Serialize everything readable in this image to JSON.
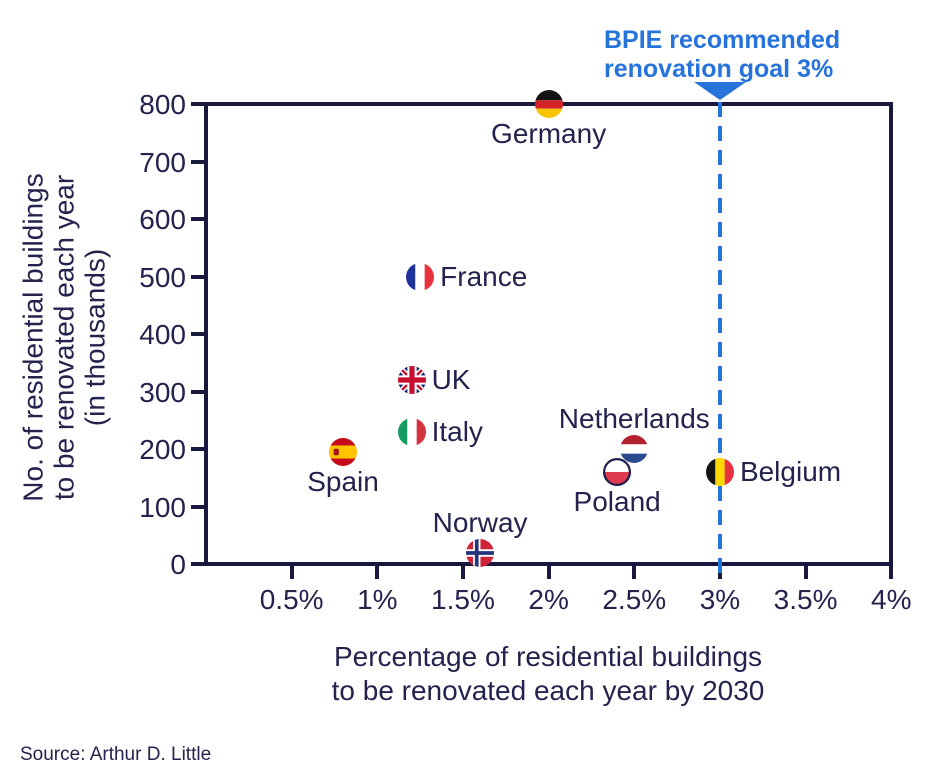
{
  "colors": {
    "navy_text": "#23234e",
    "axis_navy": "#191940",
    "accent_blue": "#2673db"
  },
  "source_note": "Source: Arthur D. Little",
  "chart_data": {
    "type": "scatter",
    "title": "",
    "xlabel_line1": "Percentage of residential buildings",
    "xlabel_line2": "to be renovated each year by 2030",
    "ylabel_line1": "No. of residential buildings",
    "ylabel_line2": "to be renovated each year",
    "ylabel_line3": "(in thousands)",
    "xlim": [
      0,
      4
    ],
    "ylim": [
      0,
      800
    ],
    "grid": false,
    "legend": "none",
    "x_ticks": [
      {
        "value": 0.5,
        "label": "0.5%"
      },
      {
        "value": 1,
        "label": "1%"
      },
      {
        "value": 1.5,
        "label": "1.5%"
      },
      {
        "value": 2,
        "label": "2%"
      },
      {
        "value": 2.5,
        "label": "2.5%"
      },
      {
        "value": 3,
        "label": "3%"
      },
      {
        "value": 3.5,
        "label": "3.5%"
      },
      {
        "value": 4,
        "label": "4%"
      }
    ],
    "y_ticks": [
      {
        "value": 0,
        "label": "0"
      },
      {
        "value": 100,
        "label": "100"
      },
      {
        "value": 200,
        "label": "200"
      },
      {
        "value": 300,
        "label": "300"
      },
      {
        "value": 400,
        "label": "400"
      },
      {
        "value": 500,
        "label": "500"
      },
      {
        "value": 600,
        "label": "600"
      },
      {
        "value": 700,
        "label": "700"
      },
      {
        "value": 800,
        "label": "800"
      }
    ],
    "reference_line": {
      "x": 3,
      "style": "dashed",
      "color": "#2673db",
      "annotation_line1": "BPIE recommended",
      "annotation_line2": "renovation goal 3%"
    },
    "points": [
      {
        "country": "Germany",
        "x": 2.0,
        "y": 800,
        "flag": "germany",
        "label_pos": "below"
      },
      {
        "country": "France",
        "x": 1.25,
        "y": 500,
        "flag": "france",
        "label_pos": "right"
      },
      {
        "country": "UK",
        "x": 1.2,
        "y": 320,
        "flag": "uk",
        "label_pos": "right"
      },
      {
        "country": "Italy",
        "x": 1.2,
        "y": 230,
        "flag": "italy",
        "label_pos": "right"
      },
      {
        "country": "Spain",
        "x": 0.8,
        "y": 195,
        "flag": "spain",
        "label_pos": "below"
      },
      {
        "country": "Netherlands",
        "x": 2.5,
        "y": 200,
        "flag": "netherlands",
        "label_pos": "above"
      },
      {
        "country": "Poland",
        "x": 2.4,
        "y": 160,
        "flag": "poland",
        "label_pos": "below"
      },
      {
        "country": "Belgium",
        "x": 3.0,
        "y": 160,
        "flag": "belgium",
        "label_pos": "right"
      },
      {
        "country": "Norway",
        "x": 1.6,
        "y": 20,
        "flag": "norway",
        "label_pos": "above"
      }
    ]
  }
}
